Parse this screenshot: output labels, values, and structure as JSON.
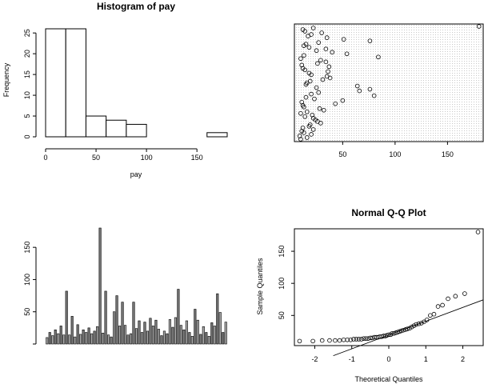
{
  "chart_data": [
    {
      "type": "histogram",
      "title": "Histogram of pay",
      "xlabel": "pay",
      "ylabel": "Frequency",
      "bins": [
        0,
        20,
        40,
        60,
        80,
        100,
        120,
        140,
        160,
        180
      ],
      "counts": [
        26,
        26,
        5,
        4,
        3,
        0,
        0,
        0,
        1
      ],
      "xlim": [
        0,
        180
      ],
      "ylim": [
        0,
        27
      ],
      "xticks": [
        "0",
        "50",
        "100",
        "150"
      ],
      "yticks": [
        "0",
        "5",
        "10",
        "15",
        "20",
        "25"
      ]
    },
    {
      "type": "scatter",
      "title": "",
      "xlabel": "",
      "ylabel": "",
      "xlim": [
        7,
        181
      ],
      "xticks": [
        "50",
        "100",
        "150"
      ],
      "grid": "dense dotted background",
      "points": [
        [
          10,
          1
        ],
        [
          16,
          2
        ],
        [
          9,
          3
        ],
        [
          20,
          4
        ],
        [
          13,
          5
        ],
        [
          11,
          6
        ],
        [
          22,
          7
        ],
        [
          12,
          8
        ],
        [
          18,
          9
        ],
        [
          19,
          10
        ],
        [
          29,
          11
        ],
        [
          26,
          12
        ],
        [
          24,
          13
        ],
        [
          22,
          14
        ],
        [
          14,
          15
        ],
        [
          21,
          16
        ],
        [
          10,
          17
        ],
        [
          16,
          18
        ],
        [
          32,
          19
        ],
        [
          28,
          20
        ],
        [
          13,
          21
        ],
        [
          12,
          22
        ],
        [
          43,
          23
        ],
        [
          11,
          24
        ],
        [
          50,
          25
        ],
        [
          23,
          26
        ],
        [
          15,
          27
        ],
        [
          80,
          28
        ],
        [
          20,
          29
        ],
        [
          27,
          30
        ],
        [
          66,
          31
        ],
        [
          76,
          32
        ],
        [
          25,
          33
        ],
        [
          64,
          34
        ],
        [
          15,
          35
        ],
        [
          16,
          36
        ],
        [
          19,
          37
        ],
        [
          31,
          38
        ],
        [
          38,
          39
        ],
        [
          35,
          40
        ],
        [
          20,
          41
        ],
        [
          18,
          42
        ],
        [
          36,
          43
        ],
        [
          14,
          44
        ],
        [
          12,
          45
        ],
        [
          37,
          46
        ],
        [
          11,
          47
        ],
        [
          26,
          48
        ],
        [
          34,
          49
        ],
        [
          29,
          50
        ],
        [
          10,
          51
        ],
        [
          84,
          52
        ],
        [
          13,
          53
        ],
        [
          54,
          54
        ],
        [
          40,
          55
        ],
        [
          25,
          56
        ],
        [
          34,
          57
        ],
        [
          18,
          58
        ],
        [
          13,
          59
        ],
        [
          15,
          60
        ],
        [
          27,
          61
        ],
        [
          76,
          62
        ],
        [
          51,
          63
        ],
        [
          35,
          64
        ],
        [
          17,
          65
        ],
        [
          20,
          66
        ],
        [
          30,
          67
        ],
        [
          14,
          68
        ],
        [
          12,
          69
        ],
        [
          22,
          70
        ],
        [
          180,
          71
        ]
      ]
    },
    {
      "type": "bar",
      "title": "",
      "xlabel": "",
      "ylabel": "",
      "ylim": [
        0,
        180
      ],
      "yticks": [
        "50",
        "100",
        "150"
      ],
      "colors": [
        "#aaaaaa",
        "#777777"
      ],
      "values": [
        10,
        18,
        13,
        22,
        16,
        28,
        14,
        82,
        14,
        43,
        11,
        30,
        15,
        22,
        18,
        25,
        16,
        20,
        27,
        180,
        17,
        82,
        14,
        11,
        50,
        75,
        28,
        65,
        29,
        14,
        16,
        65,
        24,
        36,
        18,
        34,
        20,
        40,
        28,
        37,
        23,
        13,
        20,
        16,
        38,
        26,
        41,
        85,
        29,
        22,
        36,
        18,
        12,
        54,
        37,
        15,
        27,
        18,
        12,
        33,
        28,
        78,
        49,
        18,
        34
      ]
    },
    {
      "type": "scatter",
      "title": "Normal Q-Q Plot",
      "xlabel": "Theoretical Quantiles",
      "ylabel": "Sample Quantiles",
      "xlim": [
        -2.55,
        2.55
      ],
      "ylim": [
        3,
        185
      ],
      "xticks": [
        "-2",
        "-1",
        "0",
        "1",
        "2"
      ],
      "yticks": [
        "50",
        "100",
        "150"
      ],
      "qq_line": {
        "slope": 21.5,
        "intercept": 19.5
      },
      "points": [
        [
          -2.41,
          10
        ],
        [
          -2.05,
          10
        ],
        [
          -1.8,
          11
        ],
        [
          -1.6,
          11
        ],
        [
          -1.45,
          11
        ],
        [
          -1.33,
          11
        ],
        [
          -1.22,
          12
        ],
        [
          -1.12,
          12
        ],
        [
          -1.03,
          12
        ],
        [
          -0.95,
          13
        ],
        [
          -0.88,
          13
        ],
        [
          -0.81,
          13
        ],
        [
          -0.74,
          13
        ],
        [
          -0.68,
          14
        ],
        [
          -0.62,
          14
        ],
        [
          -0.56,
          14
        ],
        [
          -0.5,
          15
        ],
        [
          -0.45,
          15
        ],
        [
          -0.39,
          16
        ],
        [
          -0.34,
          16
        ],
        [
          -0.29,
          16
        ],
        [
          -0.24,
          17
        ],
        [
          -0.19,
          17
        ],
        [
          -0.14,
          18
        ],
        [
          -0.09,
          18
        ],
        [
          -0.05,
          19
        ],
        [
          0,
          20
        ],
        [
          0.05,
          20
        ],
        [
          0.09,
          22
        ],
        [
          0.14,
          22
        ],
        [
          0.19,
          23
        ],
        [
          0.24,
          24
        ],
        [
          0.29,
          25
        ],
        [
          0.34,
          26
        ],
        [
          0.39,
          27
        ],
        [
          0.45,
          28
        ],
        [
          0.5,
          29
        ],
        [
          0.56,
          30
        ],
        [
          0.62,
          32
        ],
        [
          0.68,
          34
        ],
        [
          0.74,
          36
        ],
        [
          0.81,
          37
        ],
        [
          0.88,
          38
        ],
        [
          0.95,
          40
        ],
        [
          1.03,
          43
        ],
        [
          1.12,
          50
        ],
        [
          1.22,
          52
        ],
        [
          1.33,
          64
        ],
        [
          1.45,
          66
        ],
        [
          1.6,
          76
        ],
        [
          1.8,
          80
        ],
        [
          2.05,
          84
        ],
        [
          2.41,
          180
        ]
      ]
    }
  ]
}
